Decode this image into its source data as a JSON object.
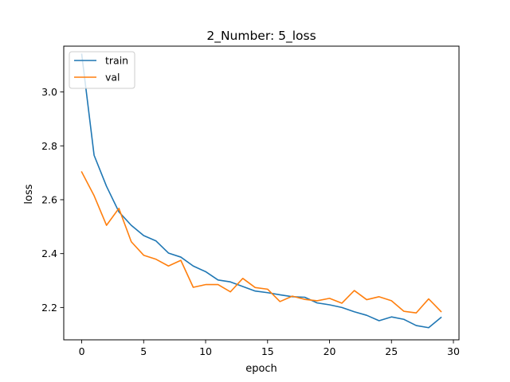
{
  "chart_data": {
    "type": "line",
    "title": "2_Number: 5_loss",
    "xlabel": "epoch",
    "ylabel": "loss",
    "xlim": [
      -1.45,
      30.45
    ],
    "ylim": [
      2.08,
      3.17
    ],
    "xticks": [
      0,
      5,
      10,
      15,
      20,
      25,
      30
    ],
    "yticks": [
      2.2,
      2.4,
      2.6,
      2.8,
      3.0
    ],
    "grid": false,
    "legend_position": "top-left",
    "x": [
      0,
      1,
      2,
      3,
      4,
      5,
      6,
      7,
      8,
      9,
      10,
      11,
      12,
      13,
      14,
      15,
      16,
      17,
      18,
      19,
      20,
      21,
      22,
      23,
      24,
      25,
      26,
      27,
      28,
      29
    ],
    "series": [
      {
        "name": "train",
        "color": "#1f77b4",
        "values": [
          3.14,
          2.765,
          2.65,
          2.555,
          2.505,
          2.467,
          2.447,
          2.402,
          2.387,
          2.354,
          2.333,
          2.302,
          2.295,
          2.278,
          2.261,
          2.255,
          2.247,
          2.24,
          2.238,
          2.217,
          2.21,
          2.2,
          2.184,
          2.171,
          2.151,
          2.165,
          2.156,
          2.133,
          2.125,
          2.163
        ]
      },
      {
        "name": "val",
        "color": "#ff7f0e",
        "values": [
          2.703,
          2.615,
          2.505,
          2.568,
          2.444,
          2.394,
          2.379,
          2.354,
          2.375,
          2.275,
          2.285,
          2.285,
          2.258,
          2.308,
          2.274,
          2.268,
          2.222,
          2.242,
          2.23,
          2.225,
          2.234,
          2.216,
          2.263,
          2.229,
          2.24,
          2.225,
          2.186,
          2.18,
          2.232,
          2.185
        ]
      }
    ]
  }
}
